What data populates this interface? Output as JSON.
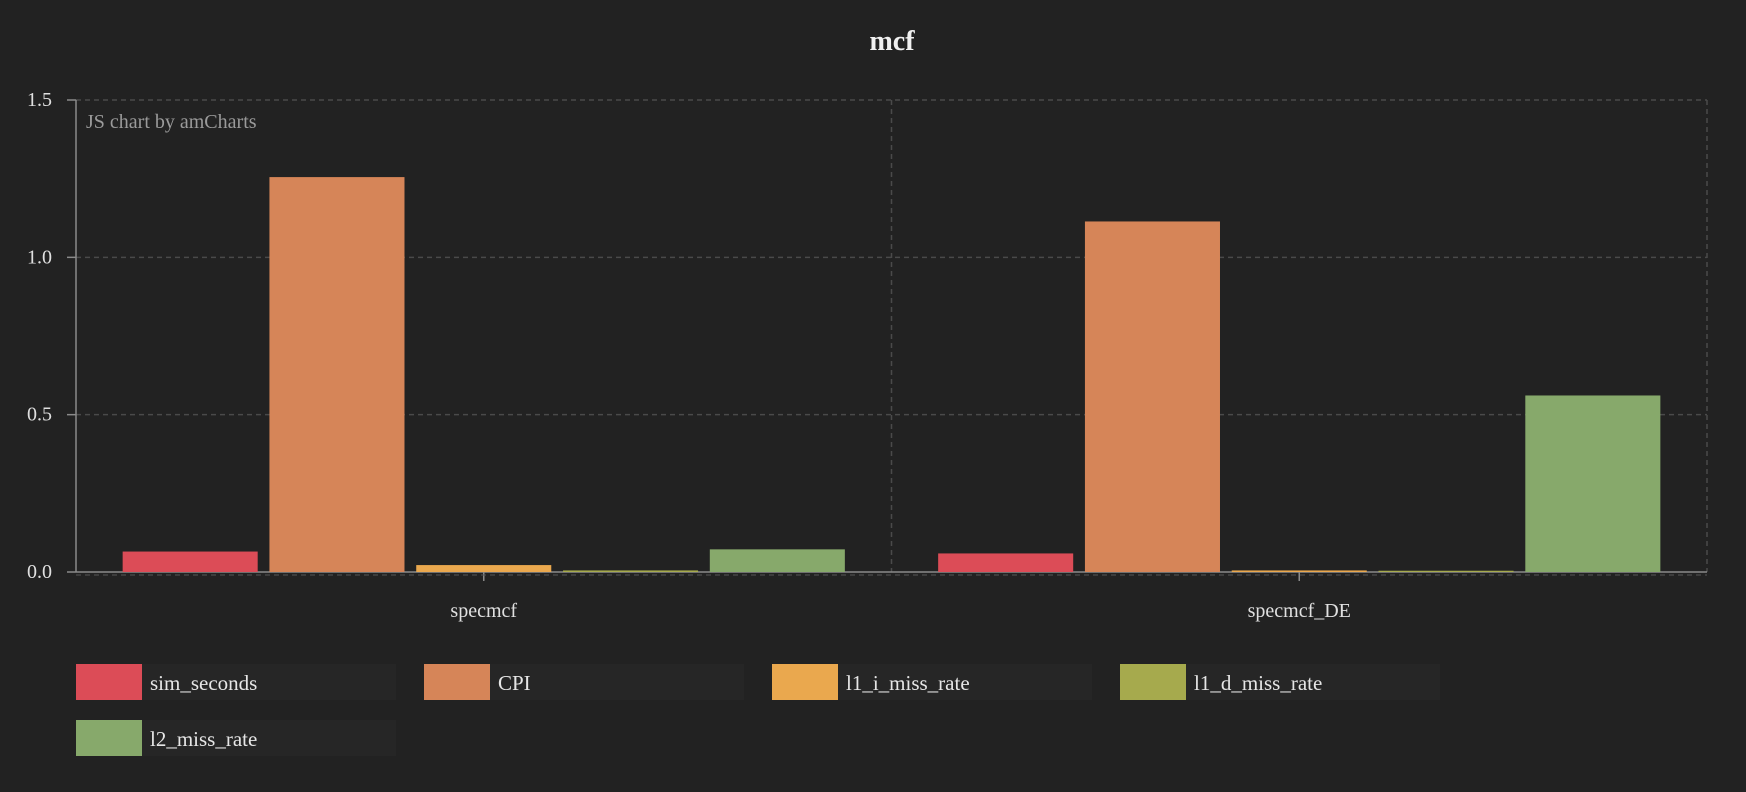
{
  "chart_data": {
    "type": "bar",
    "title": "mcf",
    "credit": "JS chart by amCharts",
    "categories": [
      "specmcf",
      "specmcf_DE"
    ],
    "series": [
      {
        "name": "sim_seconds",
        "color": "#dc4c57",
        "values": [
          0.065,
          0.059
        ]
      },
      {
        "name": "CPI",
        "color": "#d68558",
        "values": [
          1.255,
          1.114
        ]
      },
      {
        "name": "l1_i_miss_rate",
        "color": "#eaa84e",
        "values": [
          0.022,
          0.005
        ]
      },
      {
        "name": "l1_d_miss_rate",
        "color": "#a6aa4d",
        "values": [
          0.005,
          0.004
        ]
      },
      {
        "name": "l2_miss_rate",
        "color": "#87a96b",
        "values": [
          0.072,
          0.561
        ]
      }
    ],
    "ylim": [
      0,
      1.5
    ],
    "yticks": [
      "0.0",
      "0.5",
      "1.0",
      "1.5"
    ],
    "grid": true,
    "legend_position": "bottom",
    "background": "#222222"
  }
}
